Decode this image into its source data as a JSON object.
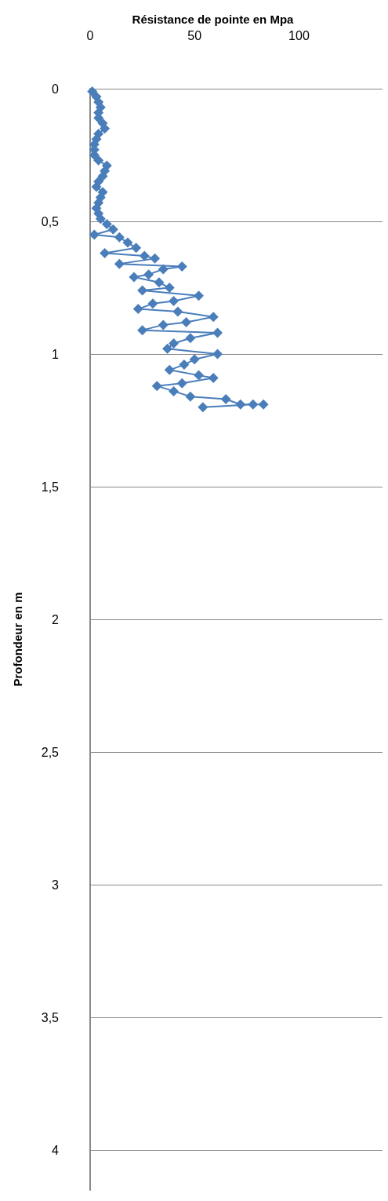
{
  "chart_data": {
    "type": "line",
    "xlabel": "Résistance de pointe en Mpa",
    "ylabel": "Profondeur en m",
    "x": [
      1,
      3,
      4,
      5,
      4,
      4,
      6,
      7,
      4,
      3,
      2,
      2,
      2,
      4,
      8,
      7,
      6,
      4,
      3,
      6,
      5,
      4,
      3,
      4,
      5,
      8,
      11,
      2,
      14,
      18,
      22,
      7,
      26,
      31,
      14,
      44,
      35,
      28,
      21,
      33,
      38,
      25,
      52,
      40,
      30,
      23,
      42,
      59,
      46,
      35,
      25,
      61,
      48,
      40,
      37,
      61,
      50,
      45,
      38,
      52,
      59,
      44,
      32,
      40,
      48,
      65,
      72,
      83,
      78,
      54
    ],
    "series": [
      {
        "color": "#4a7ebb",
        "values": [
          0.01,
          0.03,
          0.05,
          0.07,
          0.09,
          0.11,
          0.13,
          0.15,
          0.17,
          0.19,
          0.21,
          0.23,
          0.25,
          0.27,
          0.29,
          0.31,
          0.33,
          0.35,
          0.37,
          0.39,
          0.41,
          0.43,
          0.45,
          0.47,
          0.49,
          0.51,
          0.53,
          0.55,
          0.56,
          0.58,
          0.6,
          0.62,
          0.63,
          0.64,
          0.66,
          0.67,
          0.68,
          0.7,
          0.71,
          0.73,
          0.75,
          0.76,
          0.78,
          0.8,
          0.81,
          0.83,
          0.84,
          0.86,
          0.88,
          0.89,
          0.91,
          0.92,
          0.94,
          0.96,
          0.98,
          1.0,
          1.02,
          1.04,
          1.06,
          1.08,
          1.09,
          1.11,
          1.12,
          1.14,
          1.16,
          1.17,
          1.19,
          1.19,
          1.19,
          1.2
        ]
      }
    ],
    "xlim": [
      0,
      140
    ],
    "xticks": [
      0,
      50,
      100
    ],
    "ylim": [
      4.15,
      0
    ],
    "yticks": [
      0,
      {
        "value": 0.5,
        "label": "0,5"
      },
      1,
      {
        "value": 1.5,
        "label": "1,5"
      },
      2,
      {
        "value": 2.5,
        "label": "2,5"
      },
      3,
      {
        "value": 3.5,
        "label": "3,5"
      },
      4
    ],
    "grid": "y",
    "marker": "diamond",
    "line_style": "solid"
  }
}
